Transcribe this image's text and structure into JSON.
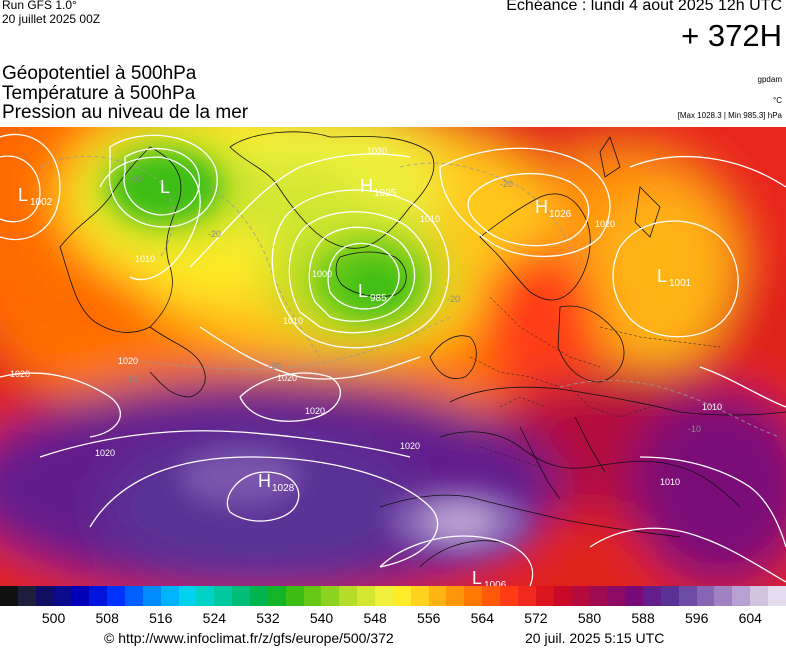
{
  "header": {
    "run": "Run GFS 1.0°",
    "run_date": "20 juillet 2025 00Z",
    "valid": "Echéance : lundi 4 aout 2025 12h UTC",
    "offset": "+ 372H"
  },
  "titles": {
    "line1": "Géopotentiel à 500hPa",
    "line2": "Température à 500hPa",
    "line3": "Pression au niveau de la mer"
  },
  "units": {
    "geopotential": "gpdam",
    "temperature": "°C",
    "minmax": "[Max 1028.3 | Min 985.3] hPa"
  },
  "pressure_centers": [
    {
      "type": "L",
      "value": "1002"
    },
    {
      "type": "L",
      "value": ""
    },
    {
      "type": "H",
      "value": "1025"
    },
    {
      "type": "L",
      "value": "985"
    },
    {
      "type": "H",
      "value": "1026"
    },
    {
      "type": "L",
      "value": "1001"
    },
    {
      "type": "H",
      "value": "1028"
    },
    {
      "type": "L",
      "value": "1006"
    }
  ],
  "isobar_labels": [
    "1020",
    "1010",
    "1010",
    "1000",
    "1010",
    "1020",
    "1020",
    "1020",
    "1020",
    "1020",
    "1010",
    "1010",
    "1020",
    "1020"
  ],
  "temperature_labels": [
    "-20",
    "-20",
    "-20",
    "-20",
    "-20",
    "-10",
    "-10"
  ],
  "legend": {
    "colors": [
      "#101010",
      "#1e1e3c",
      "#0e0e62",
      "#0a0a8c",
      "#0000b8",
      "#0014dc",
      "#0032ff",
      "#0060ff",
      "#008cff",
      "#00b4ff",
      "#00d2f0",
      "#00d2c8",
      "#00c8a0",
      "#00be78",
      "#00b450",
      "#14b428",
      "#3cbe14",
      "#64c814",
      "#8cd21e",
      "#b4dc28",
      "#d2e632",
      "#f0f03c",
      "#ffeb28",
      "#ffd21e",
      "#ffb414",
      "#ff960a",
      "#ff7800",
      "#ff5a0a",
      "#ff3c14",
      "#f0281e",
      "#dc141e",
      "#c80a28",
      "#b40a3c",
      "#a00a50",
      "#8c0a64",
      "#780a78",
      "#641e8c",
      "#5a3296",
      "#6e4ba5",
      "#8764b4",
      "#a082c3",
      "#b9a0d2",
      "#d2c3e1",
      "#e6dcf0"
    ],
    "ticks": [
      "500",
      "508",
      "516",
      "524",
      "532",
      "540",
      "548",
      "556",
      "564",
      "572",
      "580",
      "588",
      "596",
      "604"
    ]
  },
  "footer": {
    "url": "© http://www.infoclimat.fr/z/gfs/europe/500/372",
    "date": "20 juil. 2025  5:15 UTC"
  }
}
